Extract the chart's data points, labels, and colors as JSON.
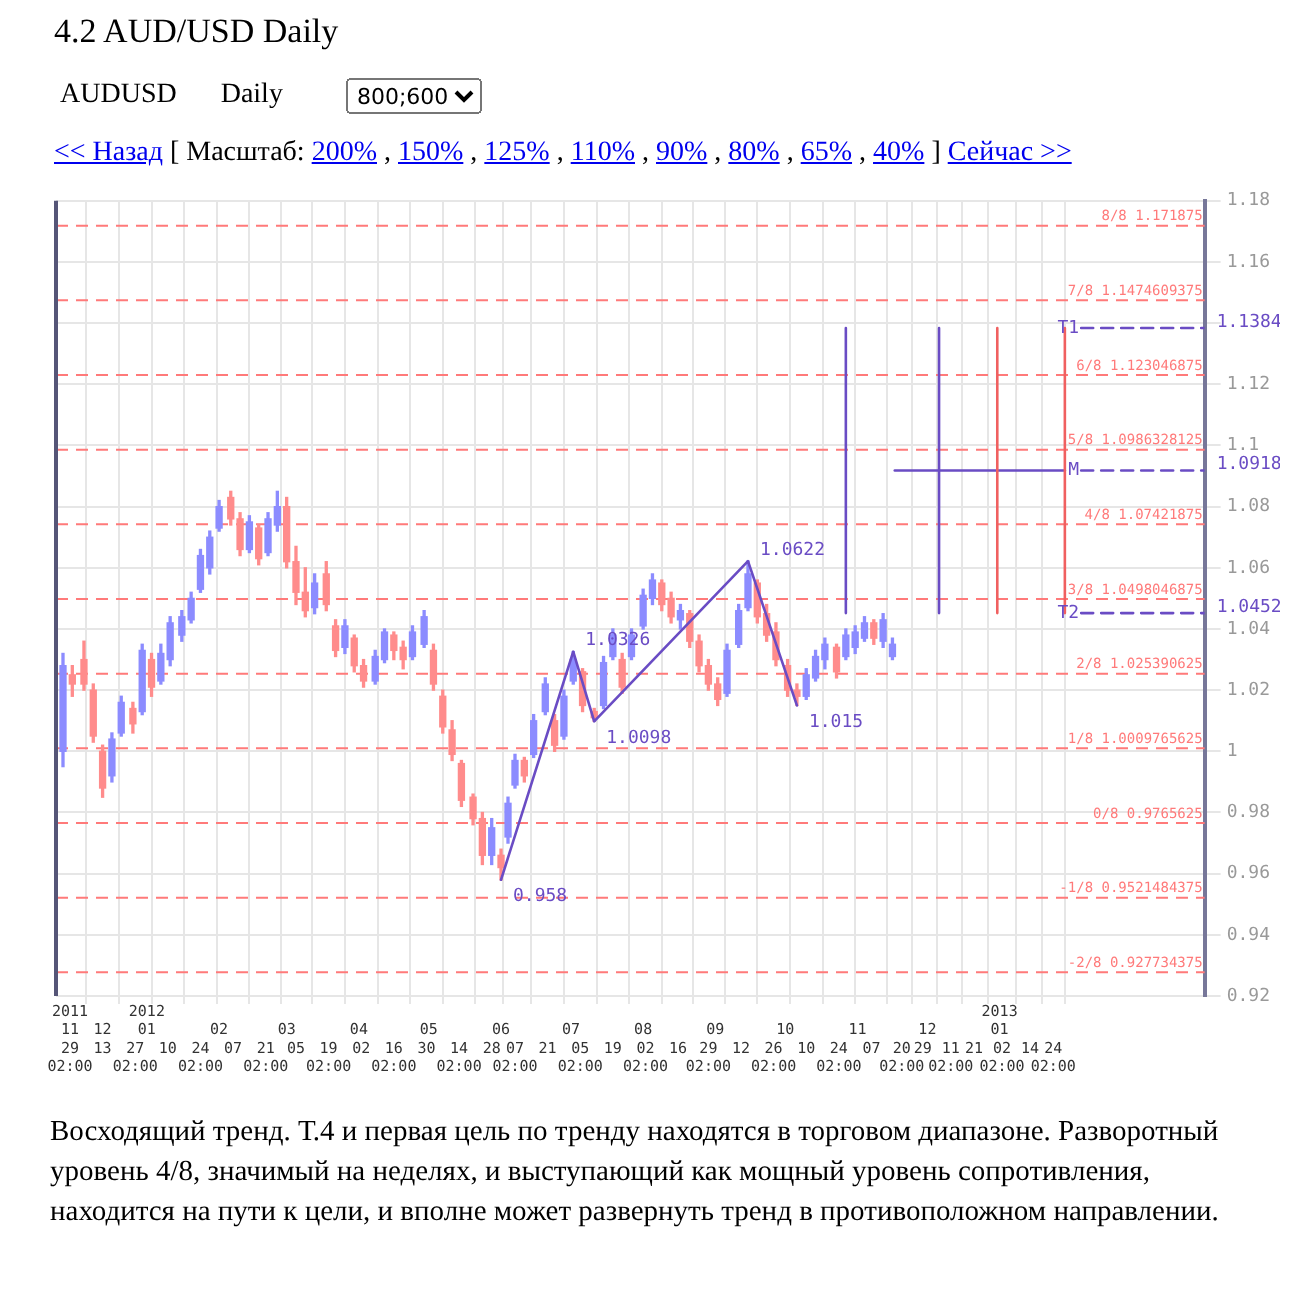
{
  "chart_data": {
    "type": "candlestick",
    "title": "4.2 AUD/USD Daily",
    "annotations": [
      "AUDUSD",
      "Daily",
      "800;600",
      "<< Назад",
      "[ Масштаб:",
      "200%",
      "150%",
      "125%",
      "110%",
      "90%",
      "80%",
      "65%",
      "40%",
      ",",
      "]",
      "Сейчас >>",
      "Восходящий тренд. Т.4 и первая цель по тренду находятся в торговом диапазоне. Разворотный уровень 4/8, значимый на неделях, и выступающий как мощный уровень сопротивления, находится на пути к цели, и вполне может развернуть тренд в противоположном направлении."
    ],
    "xlim": [
      "2011-11-23",
      "2013-03-30"
    ],
    "xticks": [
      {
        "value": "2011-11-29",
        "label": "29\n02:00"
      },
      {
        "value": "2011-12-13",
        "label": "13"
      },
      {
        "value": "2011-12-27",
        "label": "27\n02:00"
      },
      {
        "value": "2012-01-10",
        "label": "10"
      },
      {
        "value": "2012-01-24",
        "label": "24\n02:00"
      },
      {
        "value": "2012-02-07",
        "label": "07"
      },
      {
        "value": "2012-02-21",
        "label": "21\n02:00"
      },
      {
        "value": "2012-03-05",
        "label": "05"
      },
      {
        "value": "2012-03-19",
        "label": "19\n02:00"
      },
      {
        "value": "2012-04-02",
        "label": "02"
      },
      {
        "value": "2012-04-16",
        "label": "16\n02:00"
      },
      {
        "value": "2012-04-30",
        "label": "30"
      },
      {
        "value": "2012-05-14",
        "label": "14\n02:00"
      },
      {
        "value": "2012-05-28",
        "label": "28"
      },
      {
        "value": "2012-06-07",
        "label": "07\n02:00"
      },
      {
        "value": "2012-06-21",
        "label": "21"
      },
      {
        "value": "2012-07-05",
        "label": "05\n02:00"
      },
      {
        "value": "2012-07-19",
        "label": "19"
      },
      {
        "value": "2012-08-02",
        "label": "02\n02:00"
      },
      {
        "value": "2012-08-16",
        "label": "16"
      },
      {
        "value": "2012-08-29",
        "label": "29\n02:00"
      },
      {
        "value": "2012-09-12",
        "label": "12"
      },
      {
        "value": "2012-09-26",
        "label": "26\n02:00"
      },
      {
        "value": "2012-10-10",
        "label": "10"
      },
      {
        "value": "2012-10-24",
        "label": "24\n02:00"
      },
      {
        "value": "2012-11-07",
        "label": "07"
      },
      {
        "value": "2012-11-20",
        "label": "20\n02:00"
      },
      {
        "value": "2012-11-29",
        "label": "29"
      },
      {
        "value": "2012-12-11",
        "label": "11\n02:00"
      },
      {
        "value": "2012-12-21",
        "label": "21"
      },
      {
        "value": "2013-01-02",
        "label": "02\n02:00"
      },
      {
        "value": "2013-01-14",
        "label": "14"
      },
      {
        "value": "2013-01-24",
        "label": "24\n02:00"
      }
    ],
    "x2lim": [
      "2011-11-23",
      "2013-03-30"
    ],
    "x2ticks": [
      {
        "value": "2011-11-29",
        "label": "2011\n11"
      },
      {
        "value": "2011-12-13",
        "label": "12"
      },
      {
        "value": "2012-01-01",
        "label": "2012\n01"
      },
      {
        "value": "2012-02-01",
        "label": "02"
      },
      {
        "value": "2012-03-01",
        "label": "03"
      },
      {
        "value": "2012-04-01",
        "label": "04"
      },
      {
        "value": "2012-05-01",
        "label": "05"
      },
      {
        "value": "2012-06-01",
        "label": "06"
      },
      {
        "value": "2012-07-01",
        "label": "07"
      },
      {
        "value": "2012-08-01",
        "label": "08"
      },
      {
        "value": "2012-09-01",
        "label": "09"
      },
      {
        "value": "2012-10-01",
        "label": "10"
      },
      {
        "value": "2012-11-01",
        "label": "11"
      },
      {
        "value": "2012-12-01",
        "label": "12"
      },
      {
        "value": "2013-01-01",
        "label": "2013\n01"
      }
    ],
    "ylim": [
      0.92,
      1.18
    ],
    "yticks": [
      0.92,
      0.94,
      0.96,
      0.98,
      1,
      1.02,
      1.04,
      1.06,
      1.08,
      1.1,
      1.12,
      {
        "value": 1.14,
        "label": null
      },
      1.16,
      1.18
    ],
    "grid": true,
    "ref_lines": [
      {
        "axis": "y",
        "value": 1.171875,
        "label": "8/8 1.171875",
        "color": "#ff7a7a",
        "line_style": "dashed"
      },
      {
        "axis": "y",
        "value": 1.1474609375,
        "label": "7/8 1.1474609375",
        "color": "#ff7a7a",
        "line_style": "dashed"
      },
      {
        "axis": "y",
        "value": 1.123046875,
        "label": "6/8 1.123046875",
        "color": "#ff7a7a",
        "line_style": "dashed"
      },
      {
        "axis": "y",
        "value": 1.0986328125,
        "label": "5/8 1.0986328125",
        "color": "#ff7a7a",
        "line_style": "dashed"
      },
      {
        "axis": "y",
        "value": 1.07421875,
        "label": "4/8 1.07421875",
        "color": "#ff7a7a",
        "line_style": "dashed"
      },
      {
        "axis": "y",
        "value": 1.0498046875,
        "label": "3/8 1.0498046875",
        "color": "#ff7a7a",
        "line_style": "dashed"
      },
      {
        "axis": "y",
        "value": 1.025390625,
        "label": "2/8 1.025390625",
        "color": "#ff7a7a",
        "line_style": "dashed"
      },
      {
        "axis": "y",
        "value": 1.0009765625,
        "label": "1/8 1.0009765625",
        "color": "#ff7a7a",
        "line_style": "dashed"
      },
      {
        "axis": "y",
        "value": 0.9765625,
        "label": "0/8 0.9765625",
        "color": "#ff7a7a",
        "line_style": "dashed"
      },
      {
        "axis": "y",
        "value": 0.9521484375,
        "label": "-1/8 0.9521484375",
        "color": "#ff7a7a",
        "line_style": "dashed"
      },
      {
        "axis": "y",
        "value": 0.927734375,
        "label": "-2/8 0.927734375",
        "color": "#ff7a7a",
        "line_style": "dashed"
      }
    ],
    "series": [
      {
        "type": "candlestick",
        "color": "#8c8cff",
        "x": [
          "2011-11-26",
          "2011-12-17",
          "2011-12-21",
          "2011-12-30",
          "2012-01-07",
          "2012-01-11",
          "2012-01-16",
          "2012-01-20",
          "2012-01-24",
          "2012-01-28",
          "2012-02-01",
          "2012-02-14",
          "2012-02-22",
          "2012-02-26",
          "2012-03-13",
          "2012-03-26",
          "2012-04-08",
          "2012-04-12",
          "2012-04-24",
          "2012-04-29",
          "2012-05-28",
          "2012-06-04",
          "2012-06-07",
          "2012-06-15",
          "2012-06-20",
          "2012-06-28",
          "2012-07-02",
          "2012-07-15",
          "2012-07-19",
          "2012-07-27",
          "2012-08-01",
          "2012-08-05",
          "2012-08-17",
          "2012-09-06",
          "2012-09-11",
          "2012-09-15",
          "2012-10-10",
          "2012-10-14",
          "2012-10-18",
          "2012-10-27",
          "2012-10-31",
          "2012-11-04",
          "2012-11-12",
          "2012-11-16"
        ],
        "ohlc": [
          [
            1.0,
            1.032,
            0.995,
            1.028
          ],
          [
            0.992,
            1.006,
            0.99,
            1.004
          ],
          [
            1.006,
            1.018,
            1.005,
            1.016
          ],
          [
            1.013,
            1.035,
            1.012,
            1.033
          ],
          [
            1.023,
            1.035,
            1.022,
            1.032
          ],
          [
            1.03,
            1.044,
            1.028,
            1.042
          ],
          [
            1.038,
            1.046,
            1.036,
            1.044
          ],
          [
            1.043,
            1.052,
            1.042,
            1.05
          ],
          [
            1.053,
            1.066,
            1.052,
            1.064
          ],
          [
            1.06,
            1.072,
            1.058,
            1.07
          ],
          [
            1.073,
            1.082,
            1.072,
            1.08
          ],
          [
            1.066,
            1.077,
            1.065,
            1.075
          ],
          [
            1.065,
            1.078,
            1.064,
            1.076
          ],
          [
            1.074,
            1.085,
            1.072,
            1.08
          ],
          [
            1.047,
            1.058,
            1.045,
            1.055
          ],
          [
            1.034,
            1.043,
            1.032,
            1.041
          ],
          [
            1.023,
            1.033,
            1.022,
            1.031
          ],
          [
            1.03,
            1.04,
            1.029,
            1.039
          ],
          [
            1.031,
            1.041,
            1.03,
            1.039
          ],
          [
            1.035,
            1.046,
            1.034,
            1.044
          ],
          [
            0.966,
            0.978,
            0.963,
            0.975
          ],
          [
            0.972,
            0.985,
            0.97,
            0.983
          ],
          [
            0.989,
            0.999,
            0.988,
            0.997
          ],
          [
            0.999,
            1.012,
            0.998,
            1.01
          ],
          [
            1.013,
            1.024,
            1.012,
            1.022
          ],
          [
            1.005,
            1.02,
            1.004,
            1.018
          ],
          [
            1.023,
            1.0326,
            1.022,
            1.03
          ],
          [
            1.015,
            1.031,
            1.014,
            1.029
          ],
          [
            1.031,
            1.04,
            1.03,
            1.038
          ],
          [
            1.031,
            1.04,
            1.03,
            1.038
          ],
          [
            1.041,
            1.053,
            1.04,
            1.051
          ],
          [
            1.05,
            1.058,
            1.048,
            1.056
          ],
          [
            1.043,
            1.048,
            1.04,
            1.046
          ],
          [
            1.019,
            1.035,
            1.018,
            1.033
          ],
          [
            1.035,
            1.048,
            1.034,
            1.046
          ],
          [
            1.047,
            1.0622,
            1.046,
            1.058
          ],
          [
            1.018,
            1.027,
            1.017,
            1.025
          ],
          [
            1.024,
            1.033,
            1.023,
            1.031
          ],
          [
            1.03,
            1.037,
            1.027,
            1.035
          ],
          [
            1.031,
            1.04,
            1.03,
            1.038
          ],
          [
            1.034,
            1.041,
            1.032,
            1.039
          ],
          [
            1.037,
            1.044,
            1.036,
            1.042
          ],
          [
            1.036,
            1.045,
            1.034,
            1.043
          ],
          [
            1.031,
            1.037,
            1.03,
            1.035
          ]
        ]
      },
      {
        "type": "candlestick",
        "color": "#ff8c8c",
        "x": [
          "2011-11-30",
          "2011-12-05",
          "2011-12-09",
          "2011-12-13",
          "2011-12-26",
          "2012-01-03",
          "2012-02-06",
          "2012-02-10",
          "2012-02-18",
          "2012-03-01",
          "2012-03-05",
          "2012-03-09",
          "2012-03-18",
          "2012-03-22",
          "2012-03-30",
          "2012-04-03",
          "2012-04-16",
          "2012-04-20",
          "2012-05-03",
          "2012-05-07",
          "2012-05-11",
          "2012-05-15",
          "2012-05-20",
          "2012-05-24",
          "2012-06-01",
          "2012-06-11",
          "2012-06-24",
          "2012-07-06",
          "2012-07-11",
          "2012-07-23",
          "2012-08-09",
          "2012-08-13",
          "2012-08-21",
          "2012-08-25",
          "2012-08-29",
          "2012-09-02",
          "2012-09-19",
          "2012-09-23",
          "2012-09-27",
          "2012-10-02",
          "2012-10-06",
          "2012-10-23",
          "2012-11-08"
        ],
        "ohlc": [
          [
            1.025,
            1.028,
            1.018,
            1.022
          ],
          [
            1.03,
            1.036,
            1.02,
            1.022
          ],
          [
            1.02,
            1.022,
            1.003,
            1.005
          ],
          [
            1.0,
            1.002,
            0.985,
            0.988
          ],
          [
            1.014,
            1.016,
            1.006,
            1.009
          ],
          [
            1.03,
            1.032,
            1.018,
            1.021
          ],
          [
            1.083,
            1.085,
            1.074,
            1.076
          ],
          [
            1.076,
            1.078,
            1.064,
            1.066
          ],
          [
            1.073,
            1.074,
            1.061,
            1.063
          ],
          [
            1.08,
            1.083,
            1.06,
            1.062
          ],
          [
            1.062,
            1.067,
            1.048,
            1.052
          ],
          [
            1.052,
            1.06,
            1.044,
            1.046
          ],
          [
            1.058,
            1.062,
            1.046,
            1.048
          ],
          [
            1.041,
            1.043,
            1.031,
            1.033
          ],
          [
            1.037,
            1.038,
            1.026,
            1.028
          ],
          [
            1.028,
            1.03,
            1.021,
            1.023
          ],
          [
            1.038,
            1.039,
            1.03,
            1.033
          ],
          [
            1.034,
            1.036,
            1.027,
            1.03
          ],
          [
            1.033,
            1.035,
            1.02,
            1.022
          ],
          [
            1.018,
            1.02,
            1.006,
            1.008
          ],
          [
            1.007,
            1.01,
            0.997,
            0.999
          ],
          [
            0.996,
            0.997,
            0.982,
            0.984
          ],
          [
            0.985,
            0.986,
            0.976,
            0.978
          ],
          [
            0.978,
            0.98,
            0.963,
            0.966
          ],
          [
            0.966,
            0.968,
            0.958,
            0.962
          ],
          [
            0.997,
            0.998,
            0.99,
            0.992
          ],
          [
            1.01,
            1.012,
            1.0,
            1.002
          ],
          [
            1.026,
            1.027,
            1.013,
            1.015
          ],
          [
            1.013,
            1.014,
            1.0098,
            1.011
          ],
          [
            1.03,
            1.032,
            1.019,
            1.021
          ],
          [
            1.055,
            1.056,
            1.046,
            1.048
          ],
          [
            1.05,
            1.052,
            1.042,
            1.044
          ],
          [
            1.045,
            1.046,
            1.034,
            1.036
          ],
          [
            1.036,
            1.038,
            1.026,
            1.028
          ],
          [
            1.028,
            1.03,
            1.02,
            1.022
          ],
          [
            1.022,
            1.024,
            1.015,
            1.017
          ],
          [
            1.055,
            1.056,
            1.042,
            1.044
          ],
          [
            1.045,
            1.048,
            1.036,
            1.038
          ],
          [
            1.039,
            1.042,
            1.028,
            1.03
          ],
          [
            1.028,
            1.03,
            1.018,
            1.02
          ],
          [
            1.02,
            1.022,
            1.015,
            1.018
          ],
          [
            1.034,
            1.035,
            1.024,
            1.026
          ],
          [
            1.042,
            1.043,
            1.035,
            1.037
          ]
        ]
      },
      {
        "type": "line",
        "color": "#6a4cc4",
        "x": [
          "2012-06-01",
          "2012-07-02",
          "2012-07-11",
          "2012-09-15",
          "2012-10-06"
        ],
        "values": [
          0.958,
          1.0326,
          1.0098,
          1.0622,
          1.015
        ],
        "value_labels": [
          "0.958",
          "1.0326",
          "1.0098",
          "1.0622",
          "1.015"
        ]
      },
      {
        "type": "line",
        "color": "#6a4cc4",
        "x": [
          "2012-10-27",
          "2012-10-27"
        ],
        "values": [
          1.0452,
          1.1384
        ]
      },
      {
        "type": "line",
        "color": "#6a4cc4",
        "x": [
          "2012-12-06",
          "2012-12-06"
        ],
        "values": [
          1.0452,
          1.1384
        ]
      },
      {
        "type": "line",
        "color": "#f06060",
        "x": [
          "2012-12-31",
          "2012-12-31"
        ],
        "values": [
          1.0452,
          1.1384
        ]
      },
      {
        "type": "line",
        "color": "#f06060",
        "x": [
          "2013-01-29",
          "2013-01-29"
        ],
        "values": [
          1.0452,
          1.1384
        ]
      },
      {
        "type": "line",
        "color": "#6a4cc4",
        "x": [
          "2012-11-17",
          "2013-01-29"
        ],
        "values": [
          1.0918,
          1.0918
        ]
      },
      {
        "type": "line",
        "name": "T1",
        "color": "#6a4cc4",
        "line_style": "dashed",
        "x": [
          "2013-02-05",
          "2013-03-30"
        ],
        "values": [
          1.1384,
          1.1384
        ],
        "value_labels": [
          null,
          "1.1384"
        ]
      },
      {
        "type": "line",
        "name": "M",
        "color": "#6a4cc4",
        "line_style": "dashed",
        "x": [
          "2013-02-05",
          "2013-03-30"
        ],
        "values": [
          1.0918,
          1.0918
        ],
        "value_labels": [
          null,
          "1.0918"
        ]
      },
      {
        "type": "line",
        "name": "T2",
        "color": "#6a4cc4",
        "line_style": "dashed",
        "x": [
          "2013-02-05",
          "2013-03-30"
        ],
        "values": [
          1.0452,
          1.0452
        ],
        "value_labels": [
          null,
          "1.0452"
        ]
      }
    ]
  }
}
